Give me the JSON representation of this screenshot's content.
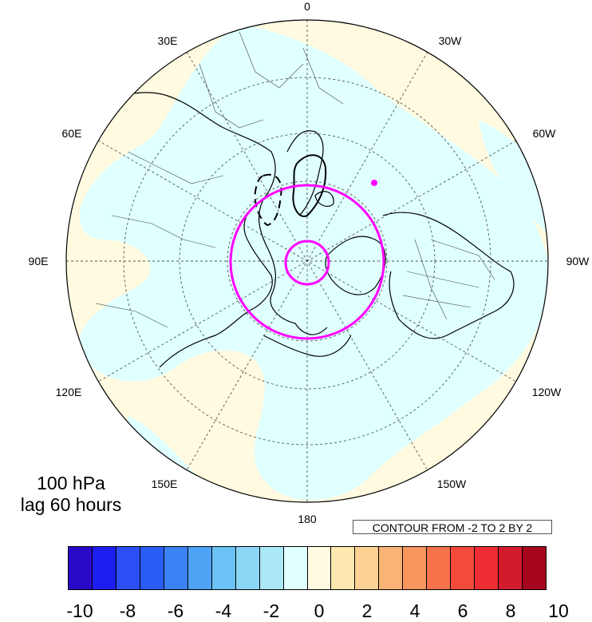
{
  "map": {
    "projection": "north-polar-stereographic",
    "longitude_labels": {
      "lon_0": "0",
      "lon_30e": "30E",
      "lon_60e": "60E",
      "lon_90e": "90E",
      "lon_120e": "120E",
      "lon_150e": "150E",
      "lon_180": "180",
      "lon_150w": "150W",
      "lon_120w": "120W",
      "lon_90w": "90W",
      "lon_60w": "60W",
      "lon_30w": "30W"
    },
    "fill_colors": {
      "negative_small": "#e0ffff",
      "positive_small": "#fffae0",
      "coastline": "#000000",
      "graticule": "#555555",
      "highlight_contour": "#ff00ff"
    }
  },
  "caption": {
    "line1": "100 hPa",
    "line2": "lag 60 hours"
  },
  "contour_note": "CONTOUR FROM -2 TO 2 BY 2",
  "colorbar": {
    "colors": [
      "#2a08c8",
      "#1c1ff0",
      "#2c4ef6",
      "#2a5cf7",
      "#3b82f5",
      "#4ea3f4",
      "#6ac2f5",
      "#8cd6f6",
      "#abe8f8",
      "#e0ffff",
      "#fffbe0",
      "#fde8b0",
      "#fcd194",
      "#f8b375",
      "#f89660",
      "#f6734c",
      "#f34a3c",
      "#ed2d33",
      "#d31b2e",
      "#a5061e"
    ],
    "labels": [
      "-10",
      "-8",
      "-6",
      "-4",
      "-2",
      "0",
      "2",
      "4",
      "6",
      "8",
      "10"
    ]
  }
}
